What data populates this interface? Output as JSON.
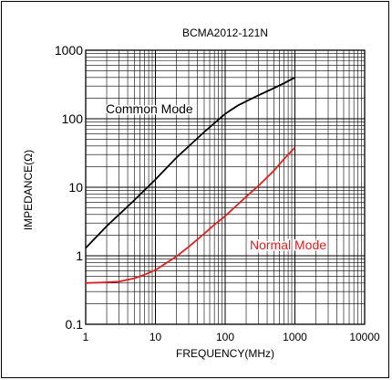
{
  "chart_data": {
    "type": "line",
    "title": "BCMA2012-121N",
    "xlabel": "FREQUENCY(MHz)",
    "ylabel": "IMPEDANCE(Ω)",
    "x_scale": "log",
    "y_scale": "log",
    "xlim": [
      1,
      10000
    ],
    "ylim": [
      0.1,
      1000
    ],
    "grid": true,
    "x_ticks": [
      "1",
      "10",
      "100",
      "1000",
      "10000"
    ],
    "y_ticks": [
      "0.1",
      "1",
      "10",
      "100",
      "1000"
    ],
    "series": [
      {
        "name": "Common Mode",
        "color": "#000000",
        "x": [
          1,
          2,
          5,
          10,
          20,
          50,
          100,
          150,
          200,
          300,
          500,
          700,
          1000
        ],
        "y": [
          1.3,
          2.7,
          6.5,
          13,
          27,
          64,
          118,
          155,
          180,
          220,
          280,
          330,
          400
        ]
      },
      {
        "name": "Normal Mode",
        "color": "#e02020",
        "x": [
          1,
          2,
          3,
          5,
          7,
          10,
          20,
          30,
          50,
          70,
          100,
          200,
          300,
          500,
          700,
          1000
        ],
        "y": [
          0.4,
          0.41,
          0.42,
          0.47,
          0.53,
          0.62,
          0.98,
          1.35,
          2.1,
          2.85,
          3.8,
          7.3,
          10.5,
          17.5,
          26,
          38
        ]
      }
    ]
  }
}
